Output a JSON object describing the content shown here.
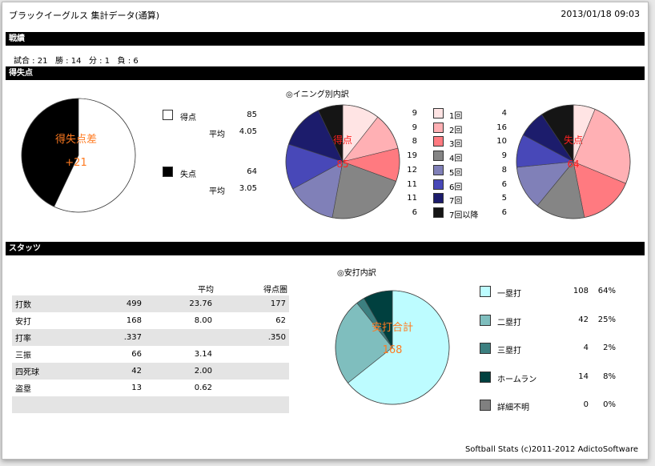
{
  "header": {
    "title": "ブラックイーグルス 集計データ(通算)",
    "date": "2013/01/18 09:03"
  },
  "sections": {
    "record": "戦績",
    "runs": "得失点",
    "stats": "スタッツ"
  },
  "record": {
    "games": "試合 : 21",
    "wins": "勝 : 14",
    "draws": "分 : 1",
    "losses": "負 : 6"
  },
  "runs": {
    "diff_label": "得失点差",
    "diff_value": "+21",
    "scored_label": "得点",
    "scored_total": "85",
    "allowed_label": "失点",
    "allowed_total": "64",
    "avg_label": "平均",
    "scored_avg": "4.05",
    "allowed_avg": "3.05",
    "inning_title": "◎イニング別内訳",
    "chart_scored_label": "得点",
    "chart_scored_value": "85",
    "chart_allowed_label": "失点",
    "chart_allowed_value": "64",
    "innings": [
      {
        "label": "1回",
        "scored": "9",
        "allowed": "4",
        "color": "#ffe4e4"
      },
      {
        "label": "2回",
        "scored": "9",
        "allowed": "16",
        "color": "#ffb0b4"
      },
      {
        "label": "3回",
        "scored": "8",
        "allowed": "10",
        "color": "#ff7a80"
      },
      {
        "label": "4回",
        "scored": "19",
        "allowed": "9",
        "color": "#858585"
      },
      {
        "label": "5回",
        "scored": "12",
        "allowed": "8",
        "color": "#8080b8"
      },
      {
        "label": "6回",
        "scored": "11",
        "allowed": "6",
        "color": "#4848b8"
      },
      {
        "label": "7回",
        "scored": "11",
        "allowed": "5",
        "color": "#1c1c6c"
      },
      {
        "label": "7回以降",
        "scored": "6",
        "allowed": "6",
        "color": "#151515"
      }
    ]
  },
  "stats": {
    "col_avg": "平均",
    "col_rbi": "得点圏",
    "rows": [
      {
        "name": "打数",
        "value": "499",
        "avg": "23.76",
        "rbi": "177"
      },
      {
        "name": "安打",
        "value": "168",
        "avg": "8.00",
        "rbi": "62"
      },
      {
        "name": "打率",
        "value": ".337",
        "avg": "",
        "rbi": ".350"
      },
      {
        "name": "三振",
        "value": "66",
        "avg": "3.14",
        "rbi": ""
      },
      {
        "name": "四死球",
        "value": "42",
        "avg": "2.00",
        "rbi": ""
      },
      {
        "name": "盗塁",
        "value": "13",
        "avg": "0.62",
        "rbi": ""
      },
      {
        "name": "",
        "value": "",
        "avg": "",
        "rbi": ""
      }
    ]
  },
  "hits": {
    "title": "◎安打内訳",
    "center_label": "安打合計",
    "center_value": "168",
    "items": [
      {
        "label": "一塁打",
        "count": "108",
        "pct": "64%",
        "color": "#bdfcff"
      },
      {
        "label": "二塁打",
        "count": "42",
        "pct": "25%",
        "color": "#7fbebe"
      },
      {
        "label": "三塁打",
        "count": "4",
        "pct": "2%",
        "color": "#3c7f80"
      },
      {
        "label": "ホームラン",
        "count": "14",
        "pct": "8%",
        "color": "#00403f"
      },
      {
        "label": "詳細不明",
        "count": "0",
        "pct": "0%",
        "color": "#808080"
      }
    ]
  },
  "footer": "Softball Stats (c)2011-2012 AdictoSoftware",
  "chart_data": [
    {
      "type": "pie",
      "categories": [
        "得点",
        "失点"
      ],
      "values": [
        85,
        64
      ],
      "title": "得失点差",
      "colors": [
        "#ffffff",
        "#000000"
      ]
    },
    {
      "type": "pie",
      "categories": [
        "1回",
        "2回",
        "3回",
        "4回",
        "5回",
        "6回",
        "7回",
        "7回以降"
      ],
      "values": [
        9,
        9,
        8,
        19,
        12,
        11,
        11,
        6
      ],
      "title": "得点"
    },
    {
      "type": "pie",
      "categories": [
        "1回",
        "2回",
        "3回",
        "4回",
        "5回",
        "6回",
        "7回",
        "7回以降"
      ],
      "values": [
        4,
        16,
        10,
        9,
        8,
        6,
        5,
        6
      ],
      "title": "失点"
    },
    {
      "type": "pie",
      "categories": [
        "一塁打",
        "二塁打",
        "三塁打",
        "ホームラン",
        "詳細不明"
      ],
      "values": [
        108,
        42,
        4,
        14,
        0
      ],
      "title": "安打合計"
    }
  ]
}
